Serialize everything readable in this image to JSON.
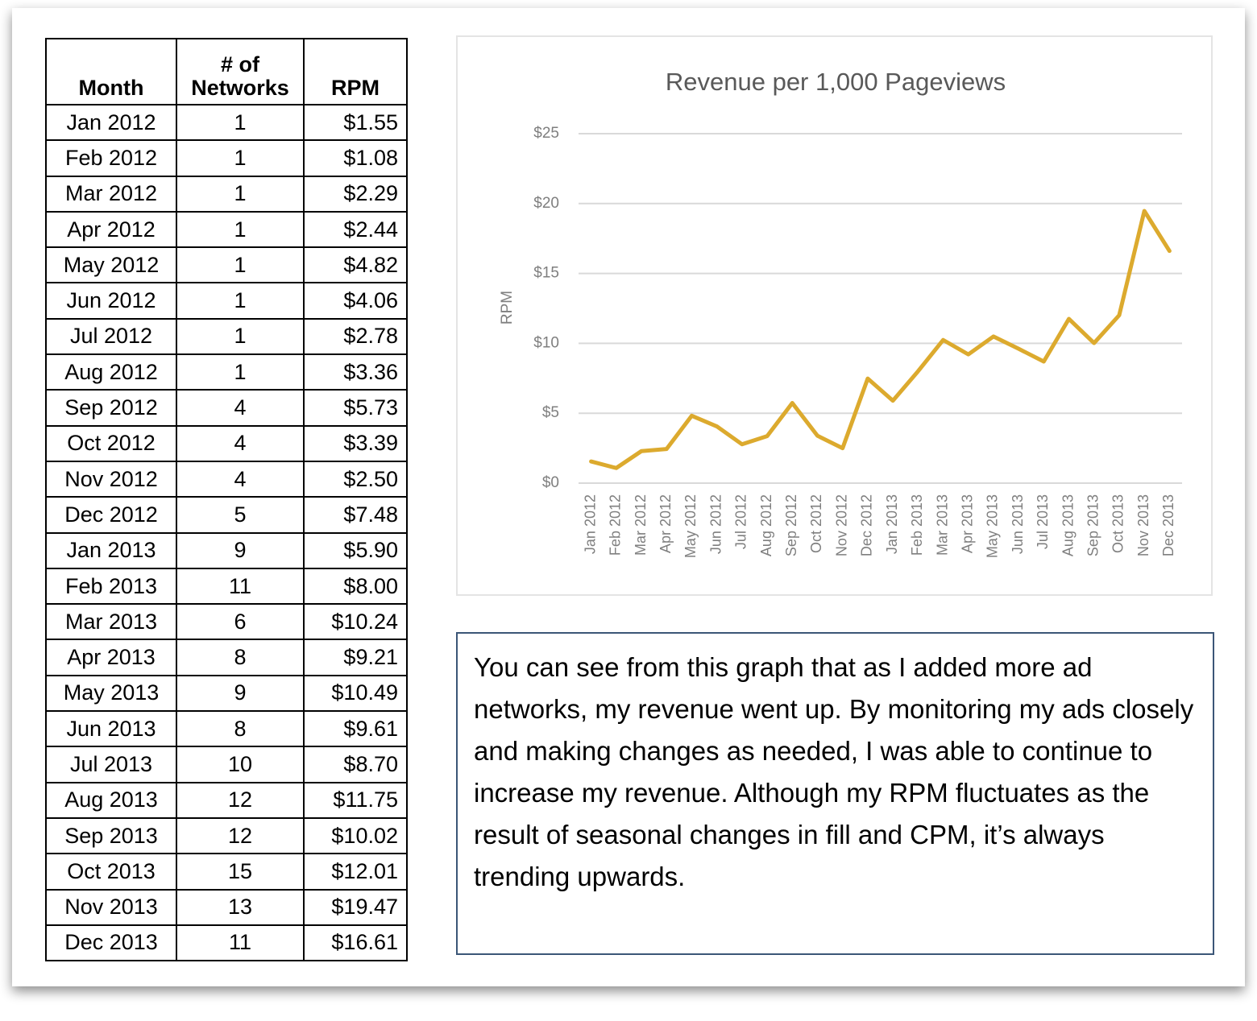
{
  "table": {
    "columns": [
      "Month",
      "# of Networks",
      "RPM"
    ],
    "rows": [
      [
        "Jan 2012",
        1,
        "$1.55"
      ],
      [
        "Feb 2012",
        1,
        "$1.08"
      ],
      [
        "Mar 2012",
        1,
        "$2.29"
      ],
      [
        "Apr 2012",
        1,
        "$2.44"
      ],
      [
        "May 2012",
        1,
        "$4.82"
      ],
      [
        "Jun 2012",
        1,
        "$4.06"
      ],
      [
        "Jul 2012",
        1,
        "$2.78"
      ],
      [
        "Aug 2012",
        1,
        "$3.36"
      ],
      [
        "Sep 2012",
        4,
        "$5.73"
      ],
      [
        "Oct 2012",
        4,
        "$3.39"
      ],
      [
        "Nov 2012",
        4,
        "$2.50"
      ],
      [
        "Dec 2012",
        5,
        "$7.48"
      ],
      [
        "Jan 2013",
        9,
        "$5.90"
      ],
      [
        "Feb 2013",
        11,
        "$8.00"
      ],
      [
        "Mar 2013",
        6,
        "$10.24"
      ],
      [
        "Apr 2013",
        8,
        "$9.21"
      ],
      [
        "May 2013",
        9,
        "$10.49"
      ],
      [
        "Jun 2013",
        8,
        "$9.61"
      ],
      [
        "Jul 2013",
        10,
        "$8.70"
      ],
      [
        "Aug 2013",
        12,
        "$11.75"
      ],
      [
        "Sep 2013",
        12,
        "$10.02"
      ],
      [
        "Oct 2013",
        15,
        "$12.01"
      ],
      [
        "Nov 2013",
        13,
        "$19.47"
      ],
      [
        "Dec 2013",
        11,
        "$16.61"
      ]
    ]
  },
  "chart_data": {
    "type": "line",
    "title": "Revenue per 1,000 Pageviews",
    "ylabel": "RPM",
    "categories": [
      "Jan 2012",
      "Feb 2012",
      "Mar 2012",
      "Apr 2012",
      "May 2012",
      "Jun 2012",
      "Jul 2012",
      "Aug 2012",
      "Sep 2012",
      "Oct 2012",
      "Nov 2012",
      "Dec 2012",
      "Jan 2013",
      "Feb 2013",
      "Mar 2013",
      "Apr 2013",
      "May 2013",
      "Jun 2013",
      "Jul 2013",
      "Aug 2013",
      "Sep 2013",
      "Oct 2013",
      "Nov 2013",
      "Dec 2013"
    ],
    "values": [
      1.55,
      1.08,
      2.29,
      2.44,
      4.82,
      4.06,
      2.78,
      3.36,
      5.73,
      3.39,
      2.5,
      7.48,
      5.9,
      8.0,
      10.24,
      9.21,
      10.49,
      9.61,
      8.7,
      11.75,
      10.02,
      12.01,
      19.47,
      16.61
    ],
    "color": "#dcaa2e",
    "ylim": [
      0,
      25
    ],
    "yticks": [
      {
        "value": 0,
        "label": "$0"
      },
      {
        "value": 5,
        "label": "$5"
      },
      {
        "value": 10,
        "label": "$10"
      },
      {
        "value": 15,
        "label": "$15"
      },
      {
        "value": 20,
        "label": "$20"
      },
      {
        "value": 25,
        "label": "$25"
      }
    ],
    "grid": true
  },
  "note": "You can see from this graph that as I added more ad networks, my revenue went up. By monitoring my ads closely and making changes as needed, I was able to continue to increase my revenue. Although my RPM fluctuates as the result of seasonal changes in fill and CPM, it’s always trending upwards."
}
